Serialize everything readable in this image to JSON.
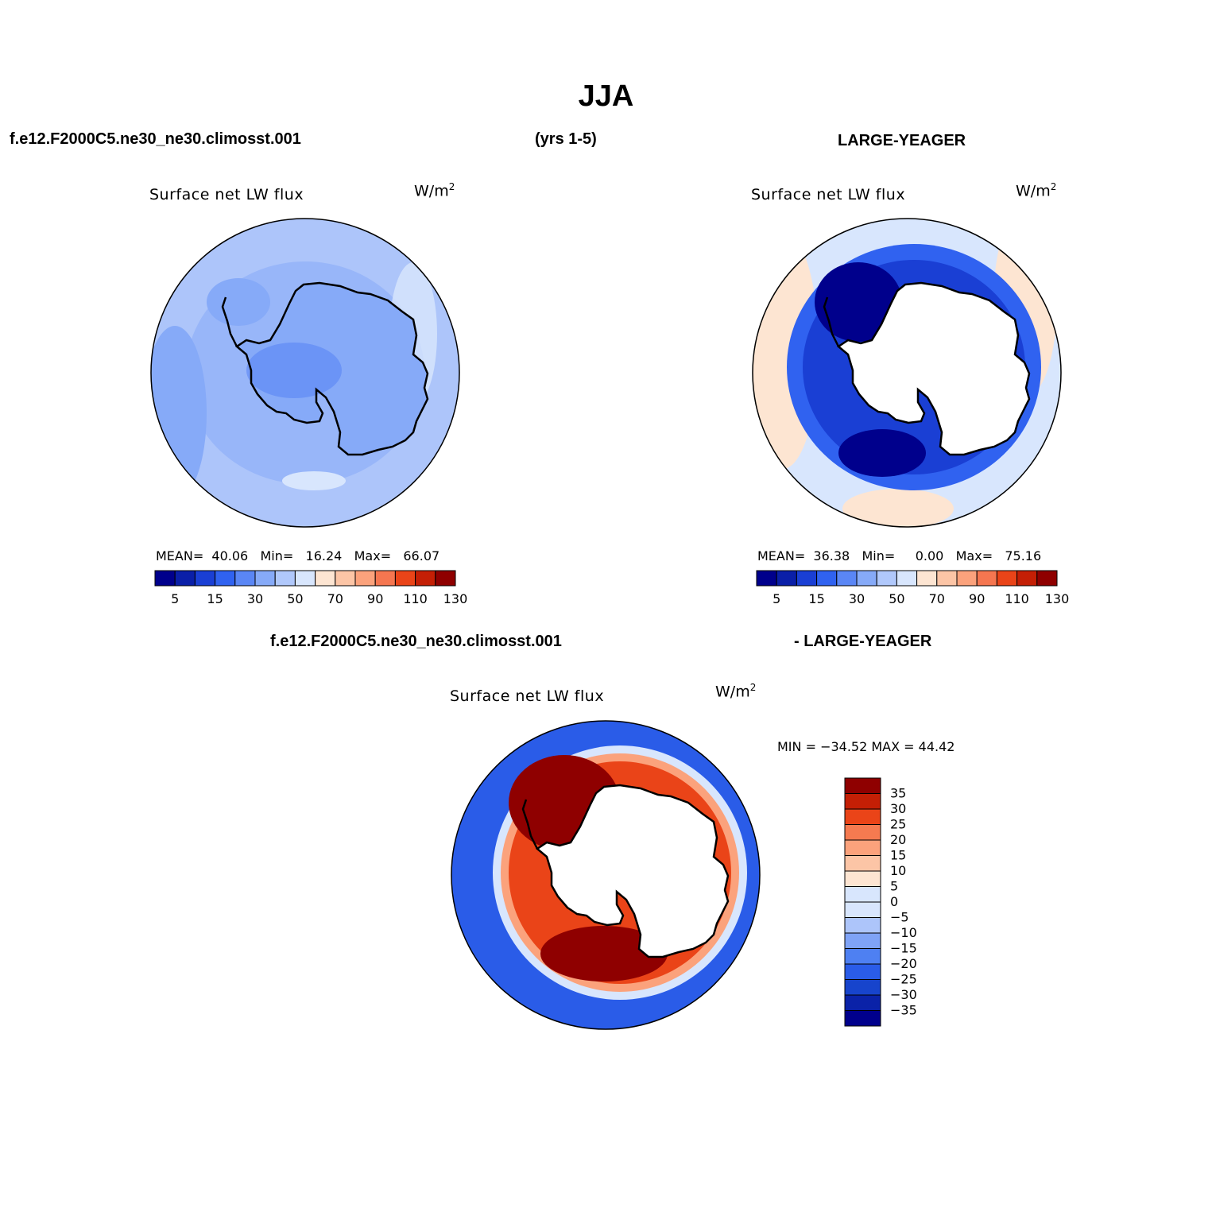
{
  "title": "JJA",
  "header": {
    "case_name": "f.e12.F2000C5.ne30_ne30.climosst.001",
    "years": "(yrs 1-5)",
    "obs_name": "LARGE-YEAGER"
  },
  "diff_header": {
    "case_name": "f.e12.F2000C5.ne30_ne30.climosst.001",
    "obs_name": "- LARGE-YEAGER"
  },
  "colors": {
    "abs_scale": [
      "#00008c",
      "#0a1fa8",
      "#1a3fd4",
      "#3062f0",
      "#5a86f5",
      "#86aaf8",
      "#b0c8fb",
      "#d8e6fd",
      "#fde5d2",
      "#fcc5a6",
      "#fba27c",
      "#f57650",
      "#ea4418",
      "#c41f05",
      "#8f0000"
    ],
    "diff_scale": [
      "#00008c",
      "#0a22a8",
      "#1744cc",
      "#2a5ce8",
      "#4e80f2",
      "#7fa3f6",
      "#adc5fa",
      "#d8e6fd",
      "#fde5d2",
      "#fcc5a6",
      "#fba27c",
      "#f57a50",
      "#ea4418",
      "#c41f05",
      "#8f0000"
    ],
    "coastline": "#000000"
  },
  "panels": [
    {
      "id": "model",
      "title": "Surface net LW flux",
      "units": "W/m",
      "units_sup": "2",
      "stats": {
        "mean_label": "MEAN=",
        "mean": "40.06",
        "min_label": "Min=",
        "min": "16.24",
        "max_label": "Max=",
        "max": "66.07"
      },
      "colorbar_ticks": [
        "5",
        "15",
        "30",
        "50",
        "70",
        "90",
        "110",
        "130"
      ]
    },
    {
      "id": "obs",
      "title": "Surface net LW flux",
      "units": "W/m",
      "units_sup": "2",
      "stats": {
        "mean_label": "MEAN=",
        "mean": "36.38",
        "min_label": "Min=",
        "min": "0.00",
        "max_label": "Max=",
        "max": "75.16"
      },
      "colorbar_ticks": [
        "5",
        "15",
        "30",
        "50",
        "70",
        "90",
        "110",
        "130"
      ]
    },
    {
      "id": "diff",
      "title": "Surface net LW flux",
      "units": "W/m",
      "units_sup": "2",
      "minmax": "MIN = −34.52 MAX =  44.42",
      "colorbar_ticks": [
        "35",
        "30",
        "25",
        "20",
        "15",
        "10",
        "5",
        "0",
        "−5",
        "−10",
        "−15",
        "−20",
        "−25",
        "−30",
        "−35"
      ]
    }
  ]
}
